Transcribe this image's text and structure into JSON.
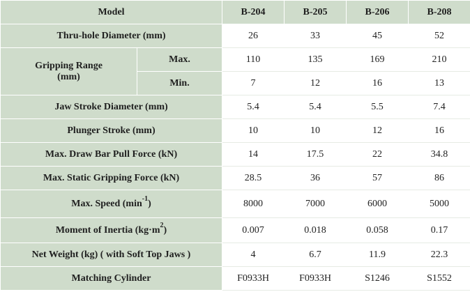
{
  "header": {
    "model_label": "Model",
    "models": [
      "B-204",
      "B-205",
      "B-206",
      "B-208"
    ]
  },
  "rows": {
    "thru_hole": {
      "label": "Thru-hole Diameter (mm)",
      "values": [
        "26",
        "33",
        "45",
        "52"
      ]
    },
    "gripping_range": {
      "label_line1": "Gripping Range",
      "label_line2": "(mm)",
      "max_label": "Max.",
      "max_values": [
        "110",
        "135",
        "169",
        "210"
      ],
      "min_label": "Min.",
      "min_values": [
        "7",
        "12",
        "16",
        "13"
      ]
    },
    "jaw_stroke": {
      "label": "Jaw Stroke Diameter (mm)",
      "values": [
        "5.4",
        "5.4",
        "5.5",
        "7.4"
      ]
    },
    "plunger_stroke": {
      "label": "Plunger Stroke (mm)",
      "values": [
        "10",
        "10",
        "12",
        "16"
      ]
    },
    "draw_bar": {
      "label": "Max. Draw Bar Pull Force (kN)",
      "values": [
        "14",
        "17.5",
        "22",
        "34.8"
      ]
    },
    "static_grip": {
      "label": "Max. Static Gripping Force (kN)",
      "values": [
        "28.5",
        "36",
        "57",
        "86"
      ]
    },
    "max_speed": {
      "label_prefix": "Max. Speed (min",
      "label_sup": "-1",
      "label_suffix": ")",
      "values": [
        "8000",
        "7000",
        "6000",
        "5000"
      ]
    },
    "inertia": {
      "label_prefix": "Moment of Inertia (kg·m",
      "label_sup": "2",
      "label_suffix": ")",
      "values": [
        "0.007",
        "0.018",
        "0.058",
        "0.17"
      ]
    },
    "net_weight": {
      "label": "Net Weight (kg) ( with Soft Top Jaws )",
      "values": [
        "4",
        "6.7",
        "11.9",
        "22.3"
      ]
    },
    "cylinder": {
      "label": "Matching Cylinder",
      "values": [
        "F0933H",
        "F0933H",
        "S1246",
        "S1552"
      ]
    }
  },
  "colors": {
    "label_bg": "#cfdccb",
    "value_bg": "#ffffff"
  }
}
